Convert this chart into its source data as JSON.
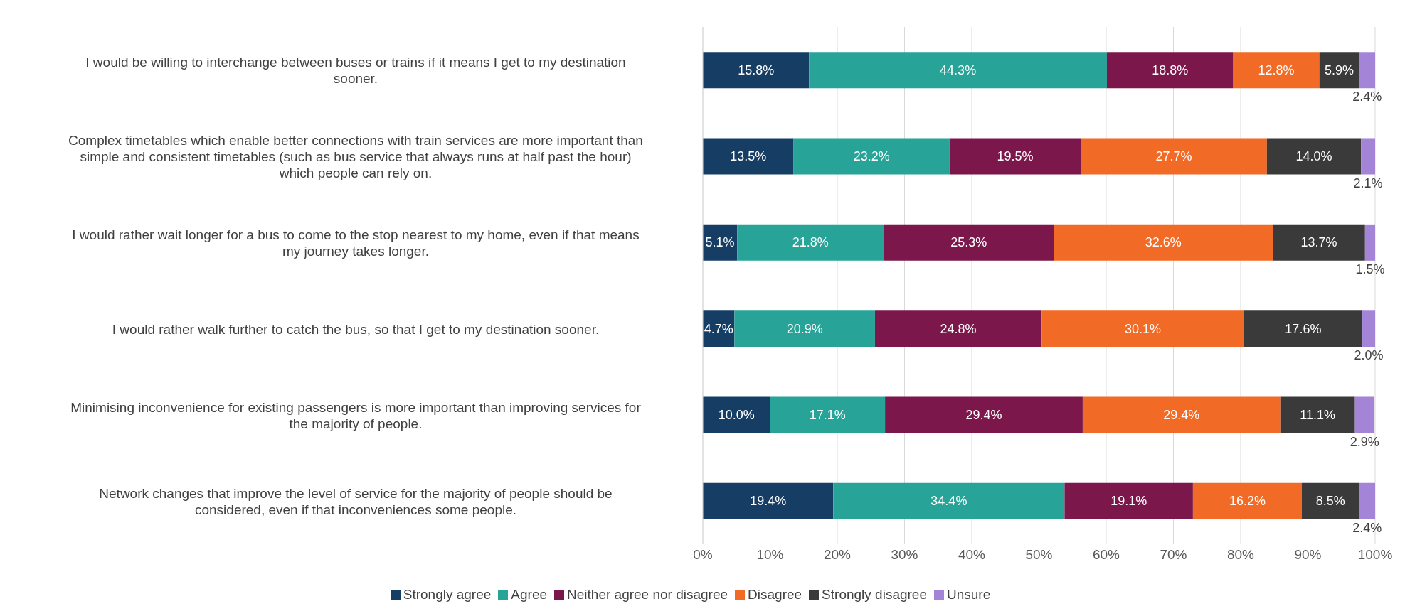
{
  "chart_data": {
    "type": "bar",
    "orientation": "horizontal",
    "stacked": true,
    "categories": [
      "I would be willing to interchange between buses or trains if it means I get to my destination sooner.",
      "Complex timetables which enable better connections with train services are more important than simple and consistent timetables (such as bus service that always runs at half past the hour) which people can rely on.",
      "I would rather wait longer for a bus to come to the stop nearest to my home, even if that means my journey takes longer.",
      "I would rather walk further to catch the bus, so that I get to my destination sooner.",
      "Minimising inconvenience for existing passengers is more important than improving services for the majority of people.",
      "Network changes that improve the level of service for the majority of people should be considered, even if that inconveniences some people."
    ],
    "series": [
      {
        "name": "Strongly agree",
        "color": "#163e64",
        "values": [
          15.8,
          13.5,
          5.1,
          4.7,
          10.0,
          19.4
        ],
        "value_labels": [
          "15.8%",
          "13.5%",
          "5.1%",
          "4.7%",
          "10.0%",
          "19.4%"
        ]
      },
      {
        "name": "Agree",
        "color": "#27a398",
        "values": [
          44.3,
          23.2,
          21.8,
          20.9,
          17.1,
          34.4
        ],
        "value_labels": [
          "44.3%",
          "23.2%",
          "21.8%",
          "20.9%",
          "17.1%",
          "34.4%"
        ]
      },
      {
        "name": "Neither agree nor disagree",
        "color": "#7b174a",
        "values": [
          18.8,
          19.5,
          25.3,
          24.8,
          29.4,
          19.1
        ],
        "value_labels": [
          "18.8%",
          "19.5%",
          "25.3%",
          "24.8%",
          "29.4%",
          "19.1%"
        ]
      },
      {
        "name": "Disagree",
        "color": "#f26b26",
        "values": [
          12.8,
          27.7,
          32.6,
          30.1,
          29.4,
          16.2
        ],
        "value_labels": [
          "12.8%",
          "27.7%",
          "32.6%",
          "30.1%",
          "29.4%",
          "16.2%"
        ]
      },
      {
        "name": "Strongly disagree",
        "color": "#3a3a3a",
        "values": [
          5.9,
          14.0,
          13.7,
          17.6,
          11.1,
          8.5
        ],
        "value_labels": [
          "5.9%",
          "14.0%",
          "13.7%",
          "17.6%",
          "11.1%",
          "8.5%"
        ]
      },
      {
        "name": "Unsure",
        "color": "#a384d6",
        "values": [
          2.4,
          2.1,
          1.5,
          2.0,
          2.9,
          2.4
        ],
        "value_labels": [
          "2.4%",
          "2.1%",
          "1.5%",
          "2.0%",
          "2.9%",
          "2.4%"
        ]
      }
    ],
    "xlim": [
      0,
      100
    ],
    "xticks": [
      {
        "value": 0,
        "label": "0%"
      },
      {
        "value": 10,
        "label": "10%"
      },
      {
        "value": 20,
        "label": "20%"
      },
      {
        "value": 30,
        "label": "30%"
      },
      {
        "value": 40,
        "label": "40%"
      },
      {
        "value": 50,
        "label": "50%"
      },
      {
        "value": 60,
        "label": "60%"
      },
      {
        "value": 70,
        "label": "70%"
      },
      {
        "value": 80,
        "label": "80%"
      },
      {
        "value": 90,
        "label": "90%"
      },
      {
        "value": 100,
        "label": "100%"
      }
    ],
    "grid": "x",
    "legend": "bottom"
  }
}
